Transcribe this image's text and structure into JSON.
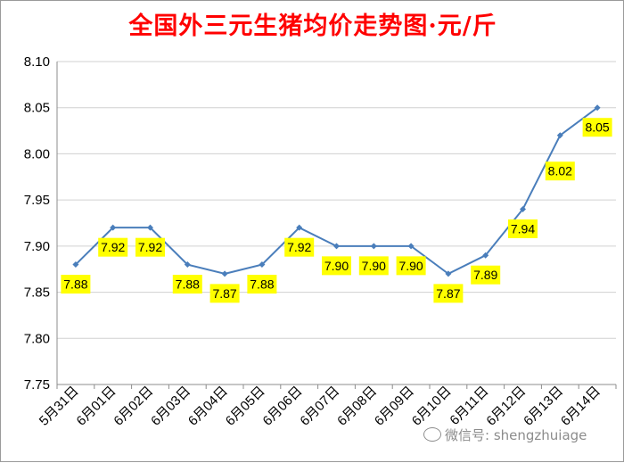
{
  "title": "全国外三元生猪均价走势图·元/斤",
  "watermark": "微信号: shengzhuiage",
  "colors": {
    "title": "#ff0000",
    "line": "#4a7ebb",
    "label_bg": "#ffff00",
    "grid": "#d0d0d0"
  },
  "chart_data": {
    "type": "line",
    "title": "全国外三元生猪均价走势图·元/斤",
    "xlabel": "",
    "ylabel": "",
    "categories": [
      "5月31日",
      "6月01日",
      "6月02日",
      "6月03日",
      "6月04日",
      "6月05日",
      "6月06日",
      "6月07日",
      "6月08日",
      "6月09日",
      "6月10日",
      "6月11日",
      "6月12日",
      "6月13日",
      "6月14日"
    ],
    "series": [
      {
        "values": [
          7.88,
          7.92,
          7.92,
          7.88,
          7.87,
          7.88,
          7.92,
          7.9,
          7.9,
          7.9,
          7.87,
          7.89,
          7.94,
          8.02,
          8.05
        ]
      }
    ],
    "data_labels": [
      "7.88",
      "7.92",
      "7.92",
      "7.88",
      "7.87",
      "7.88",
      "7.92",
      "7.90",
      "7.90",
      "7.90",
      "7.87",
      "7.89",
      "7.94",
      "8.02",
      "8.05"
    ],
    "yticks": [
      "7.75",
      "7.80",
      "7.85",
      "7.90",
      "7.95",
      "8.00",
      "8.05",
      "8.10"
    ],
    "ylim": [
      7.75,
      8.1
    ],
    "grid": true,
    "legend": "none"
  }
}
